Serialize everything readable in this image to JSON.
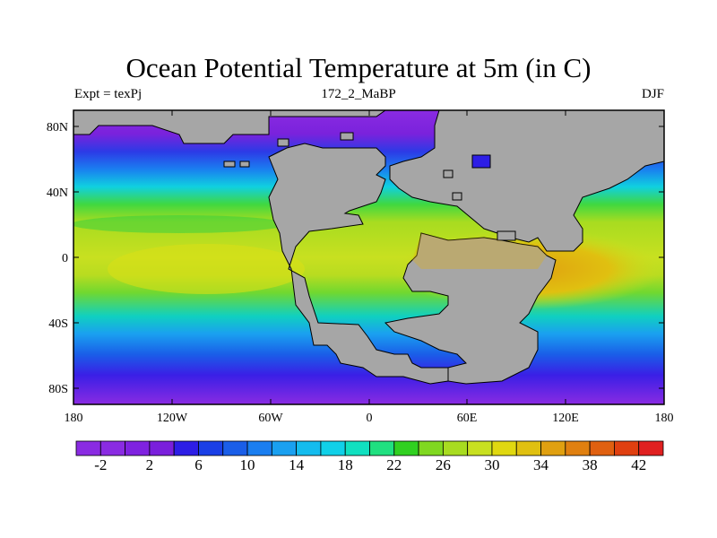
{
  "title": "Ocean Potential Temperature at 5m (in C)",
  "left_string": "Expt = texPj",
  "center_string": "172_2_MaBP",
  "right_string": "DJF",
  "x_ticks": [
    "180",
    "120W",
    "60W",
    "0",
    "60E",
    "120E",
    "180"
  ],
  "y_ticks": [
    "80N",
    "40N",
    "0",
    "40S",
    "80S"
  ],
  "colorbar": {
    "labels": [
      "-2",
      "2",
      "6",
      "10",
      "14",
      "18",
      "22",
      "26",
      "30",
      "34",
      "38",
      "42"
    ],
    "colors": [
      "#8a2be2",
      "#8a2be2",
      "#7f22e0",
      "#7a1fdc",
      "#2d1ee6",
      "#1a3fe6",
      "#1a5ee8",
      "#1a7ef0",
      "#1aa0f0",
      "#14bcee",
      "#10d0e8",
      "#10e0c0",
      "#20e080",
      "#30d020",
      "#80d820",
      "#a8dc20",
      "#c8e020",
      "#e0d810",
      "#e0c010",
      "#e0a010",
      "#e08010",
      "#e06010",
      "#e04010",
      "#e02020"
    ]
  },
  "palette": {
    "land": "#a6a6a6",
    "frame": "#000000"
  }
}
